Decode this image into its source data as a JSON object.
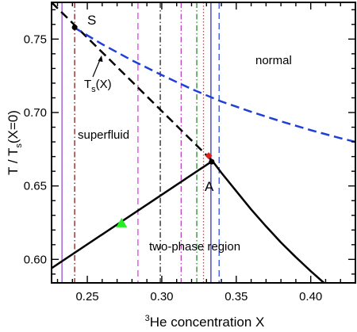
{
  "chart_data": {
    "type": "line",
    "title": "",
    "xlabel": {
      "superscript": "3",
      "text": "He concentration X"
    },
    "ylabel": {
      "prefix": "T / T",
      "subscript": "s",
      "suffix": "(X=0)"
    },
    "xlim": [
      0.226,
      0.43
    ],
    "ylim": [
      0.584,
      0.775
    ],
    "x_ticks": [
      {
        "value": 0.25,
        "label": "0.25"
      },
      {
        "value": 0.3,
        "label": "0.30"
      },
      {
        "value": 0.35,
        "label": "0.35"
      },
      {
        "value": 0.4,
        "label": "0.40"
      }
    ],
    "y_ticks": [
      {
        "value": 0.6,
        "label": "0.60"
      },
      {
        "value": 0.65,
        "label": "0.65"
      },
      {
        "value": 0.7,
        "label": "0.70"
      },
      {
        "value": 0.75,
        "label": "0.75"
      }
    ],
    "series": [
      {
        "style": "solid",
        "color": "#000000",
        "x": [
          0.226,
          0.334
        ],
        "y": [
          0.594,
          0.667
        ]
      },
      {
        "style": "solid",
        "color": "#000000",
        "x": [
          0.334,
          0.34,
          0.35,
          0.36,
          0.37,
          0.38,
          0.39,
          0.4,
          0.41,
          0.42,
          0.43
        ],
        "y": [
          0.667,
          0.659,
          0.6465,
          0.634,
          0.6225,
          0.6115,
          0.6015,
          0.592,
          0.583,
          0.574,
          0.565
        ]
      },
      {
        "style": "dashed",
        "color": "#000000",
        "x": [
          0.226,
          0.334
        ],
        "y": [
          0.775,
          0.667
        ]
      },
      {
        "style": "dashed",
        "color": "#1f3fd6",
        "x": [
          0.241,
          0.26,
          0.28,
          0.3,
          0.32,
          0.34,
          0.36,
          0.38,
          0.4,
          0.42,
          0.43
        ],
        "y": [
          0.758,
          0.7465,
          0.7355,
          0.7255,
          0.716,
          0.7075,
          0.7005,
          0.694,
          0.688,
          0.6825,
          0.68
        ]
      }
    ],
    "vertical_lines": [
      {
        "x": 0.233,
        "style": "solid",
        "color": "#9a4fd0"
      },
      {
        "x": 0.2415,
        "style": "dashdot",
        "color": "#8b1a1a"
      },
      {
        "x": 0.284,
        "style": "dashed",
        "color": "#e040e0"
      },
      {
        "x": 0.299,
        "style": "dashdot",
        "color": "#222222"
      },
      {
        "x": 0.313,
        "style": "dashdot",
        "color": "#c040c0"
      },
      {
        "x": 0.3235,
        "style": "dashdot",
        "color": "#2a8a2a"
      },
      {
        "x": 0.328,
        "style": "dotted",
        "color": "#d04040"
      },
      {
        "x": 0.333,
        "style": "solid",
        "color": "#3030c0"
      },
      {
        "x": 0.3385,
        "style": "dashed",
        "color": "#3050e0"
      }
    ],
    "points": [
      {
        "name": "S",
        "x": 0.2415,
        "y": 0.758,
        "marker": "circle",
        "color": "#000000"
      },
      {
        "name": "A",
        "x": 0.3335,
        "y": 0.6665,
        "marker": "circle",
        "color": "#000000"
      },
      {
        "name": "",
        "x": 0.3315,
        "y": 0.6705,
        "marker": "diamond",
        "color": "#e0201a"
      },
      {
        "name": "",
        "x": 0.273,
        "y": 0.6245,
        "marker": "triangle",
        "color": "#22ee22"
      }
    ],
    "annotations": {
      "S": "S",
      "A": "A",
      "normal": "normal",
      "superfluid": "superfluid",
      "two_phase": "two-phase region",
      "ts_label": {
        "prefix": "T",
        "subscript": "s",
        "suffix": "(X)"
      }
    },
    "grid": false,
    "legend": "none"
  }
}
